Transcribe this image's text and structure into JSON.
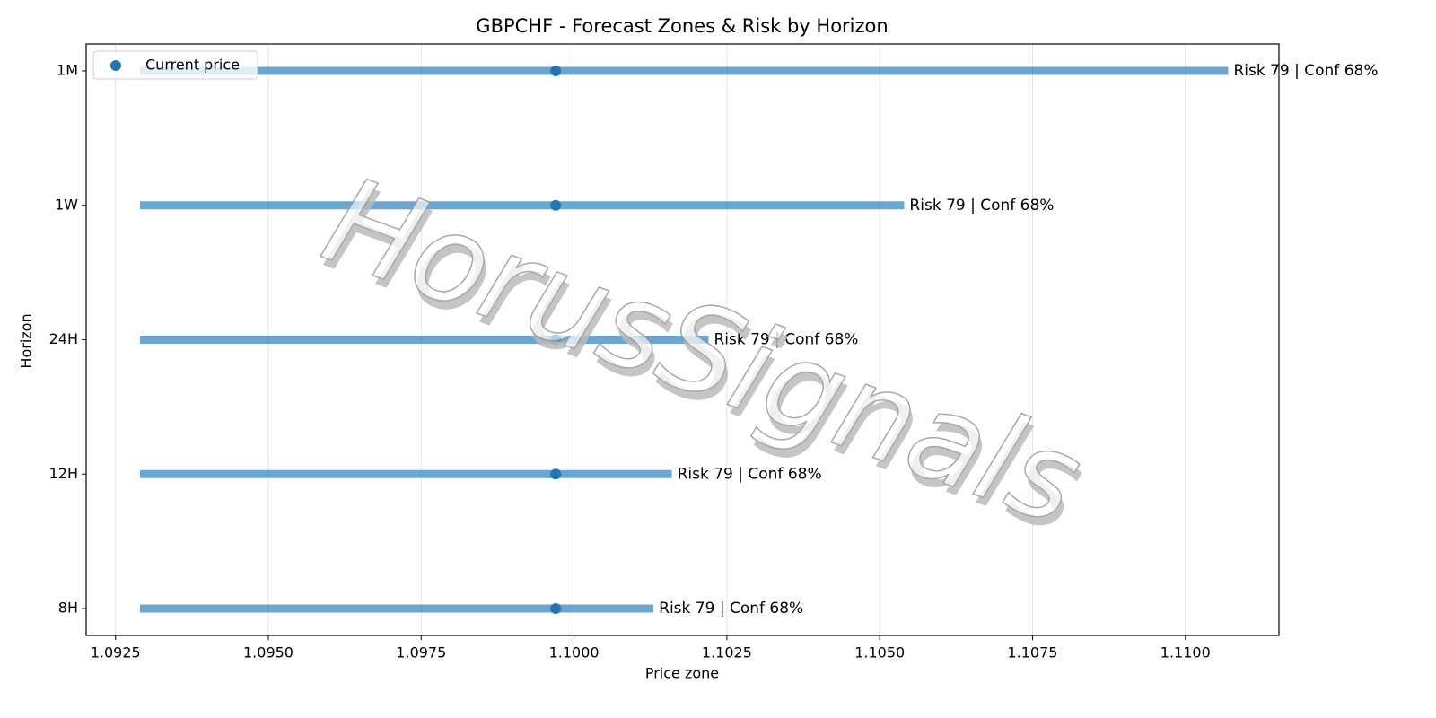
{
  "chart_data": {
    "type": "range",
    "title": "GBPCHF - Forecast Zones & Risk by Horizon",
    "xlabel": "Price zone",
    "ylabel": "Horizon",
    "watermark": "HorusSignals",
    "categories": [
      "8H",
      "12H",
      "24H",
      "1W",
      "1M"
    ],
    "range_color": "#1f77b4",
    "low": [
      1.0929,
      1.0929,
      1.0929,
      1.0929,
      1.0929
    ],
    "high": [
      1.1013,
      1.1016,
      1.1022,
      1.1054,
      1.1107
    ],
    "series": [
      {
        "name": "Current price",
        "color": "#1f77b4",
        "values": [
          1.0997,
          1.0997,
          1.0997,
          1.0997,
          1.0997
        ]
      }
    ],
    "annotations": [
      "Risk 79 | Conf 68%",
      "Risk 79 | Conf 68%",
      "Risk 79 | Conf 68%",
      "Risk 79 | Conf 68%",
      "Risk 79 | Conf 68%"
    ],
    "xlim": [
      1.09202,
      1.11153
    ],
    "xticks": [
      1.0925,
      {
        "value": 1.095,
        "label": "1.0950"
      },
      1.0975,
      {
        "value": 1.1,
        "label": "1.1000"
      },
      1.1025,
      {
        "value": 1.105,
        "label": "1.1050"
      },
      1.1075,
      {
        "value": 1.11,
        "label": "1.1100"
      }
    ],
    "grid": true,
    "legend": "upper left"
  }
}
